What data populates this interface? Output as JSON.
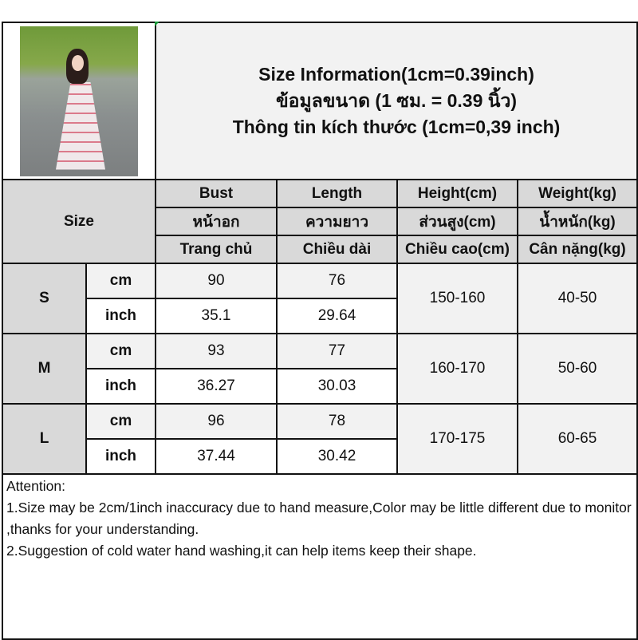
{
  "header": {
    "title_lines": [
      "Size Information(1cm=0.39inch)",
      "ข้อมูลขนาด (1 ซม. = 0.39 นิ้ว)",
      "Thông tin kích thước (1cm=0,39 inch)"
    ]
  },
  "table": {
    "size_label": "Size",
    "columns": [
      {
        "en": "Bust",
        "th": "หน้าอก",
        "vi": "Trang chủ"
      },
      {
        "en": "Length",
        "th": "ความยาว",
        "vi": "Chiều dài"
      },
      {
        "en": "Height(cm)",
        "th": "ส่วนสูง(cm)",
        "vi": "Chiều cao(cm)"
      },
      {
        "en": "Weight(kg)",
        "th": "น้ำหนัก(kg)",
        "vi": "Cân nặng(kg)"
      }
    ],
    "rows": [
      {
        "size": "S",
        "cm_label": "cm",
        "inch_label": "inch",
        "bust_cm": "90",
        "length_cm": "76",
        "bust_inch": "35.1",
        "length_inch": "29.64",
        "height": "150-160",
        "weight": "40-50"
      },
      {
        "size": "M",
        "cm_label": "cm",
        "inch_label": "inch",
        "bust_cm": "93",
        "length_cm": "77",
        "bust_inch": "36.27",
        "length_inch": "30.03",
        "height": "160-170",
        "weight": "50-60"
      },
      {
        "size": "L",
        "cm_label": "cm",
        "inch_label": "inch",
        "bust_cm": "96",
        "length_cm": "78",
        "bust_inch": "37.44",
        "length_inch": "30.42",
        "height": "170-175",
        "weight": "60-65"
      }
    ]
  },
  "notes": {
    "heading": "Attention:",
    "lines": [
      "1.Size may be 2cm/1inch inaccuracy due to hand measure,Color may be little different due to monitor ,thanks for your understanding.",
      "2.Suggestion of cold water hand washing,it can help items keep their shape."
    ]
  },
  "colors": {
    "header_gray": "#d9d9d9",
    "light_gray": "#f2f2f2",
    "border": "#111111",
    "dress_pink": "#e07a8c"
  }
}
